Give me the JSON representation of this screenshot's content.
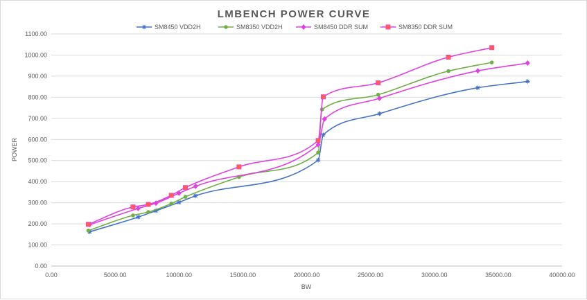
{
  "chart_data": {
    "type": "line",
    "title": "LMBENCH POWER CURVE",
    "xlabel": "BW",
    "ylabel": "POWER",
    "xlim": [
      0,
      40000
    ],
    "ylim": [
      0,
      1100
    ],
    "x_ticks": [
      0,
      5000,
      10000,
      15000,
      20000,
      25000,
      30000,
      35000,
      40000
    ],
    "x_tick_labels": [
      "0.00",
      "5000.00",
      "10000.00",
      "15000.00",
      "20000.00",
      "25000.00",
      "30000.00",
      "35000.00",
      "40000.00"
    ],
    "y_ticks": [
      0,
      100,
      200,
      300,
      400,
      500,
      600,
      700,
      800,
      900,
      1000,
      1100
    ],
    "y_tick_labels": [
      "0.00",
      "100.00",
      "200.00",
      "300.00",
      "400.00",
      "500.00",
      "600.00",
      "700.00",
      "800.00",
      "900.00",
      "1000.00",
      "1100.00"
    ],
    "grid": "horizontal",
    "legend_position": "top",
    "smooth": true,
    "series": [
      {
        "name": "SM8450 VDD2H",
        "color": "#4472c4",
        "marker": "star",
        "points": [
          [
            3000,
            162
          ],
          [
            6800,
            232
          ],
          [
            8200,
            262
          ],
          [
            10000,
            302
          ],
          [
            11300,
            333
          ],
          [
            20900,
            502
          ],
          [
            21300,
            622
          ],
          [
            25700,
            722
          ],
          [
            33400,
            845
          ],
          [
            37300,
            875
          ]
        ]
      },
      {
        "name": "SM8350 VDD2H",
        "color": "#70ad47",
        "marker": "circle",
        "points": [
          [
            2900,
            168
          ],
          [
            6400,
            240
          ],
          [
            7600,
            256
          ],
          [
            9400,
            296
          ],
          [
            10500,
            328
          ],
          [
            14700,
            422
          ],
          [
            20900,
            538
          ],
          [
            21200,
            742
          ],
          [
            25600,
            812
          ],
          [
            31100,
            924
          ],
          [
            34500,
            965
          ]
        ]
      },
      {
        "name": "SM8450 DDR SUM",
        "color": "#e040e0",
        "marker": "diamond",
        "points": [
          [
            3000,
            196
          ],
          [
            6800,
            273
          ],
          [
            8200,
            298
          ],
          [
            10000,
            345
          ],
          [
            11300,
            378
          ],
          [
            20900,
            575
          ],
          [
            21400,
            697
          ],
          [
            25700,
            795
          ],
          [
            33400,
            925
          ],
          [
            37300,
            962
          ]
        ]
      },
      {
        "name": "SM8350 DDR SUM",
        "color": "#e040e0",
        "marker_color": "#ff5b5b",
        "marker": "square",
        "points": [
          [
            2900,
            198
          ],
          [
            6400,
            280
          ],
          [
            7600,
            292
          ],
          [
            9400,
            335
          ],
          [
            10500,
            372
          ],
          [
            14700,
            470
          ],
          [
            20900,
            595
          ],
          [
            21300,
            802
          ],
          [
            25600,
            868
          ],
          [
            31100,
            990
          ],
          [
            34500,
            1035
          ]
        ]
      }
    ]
  }
}
